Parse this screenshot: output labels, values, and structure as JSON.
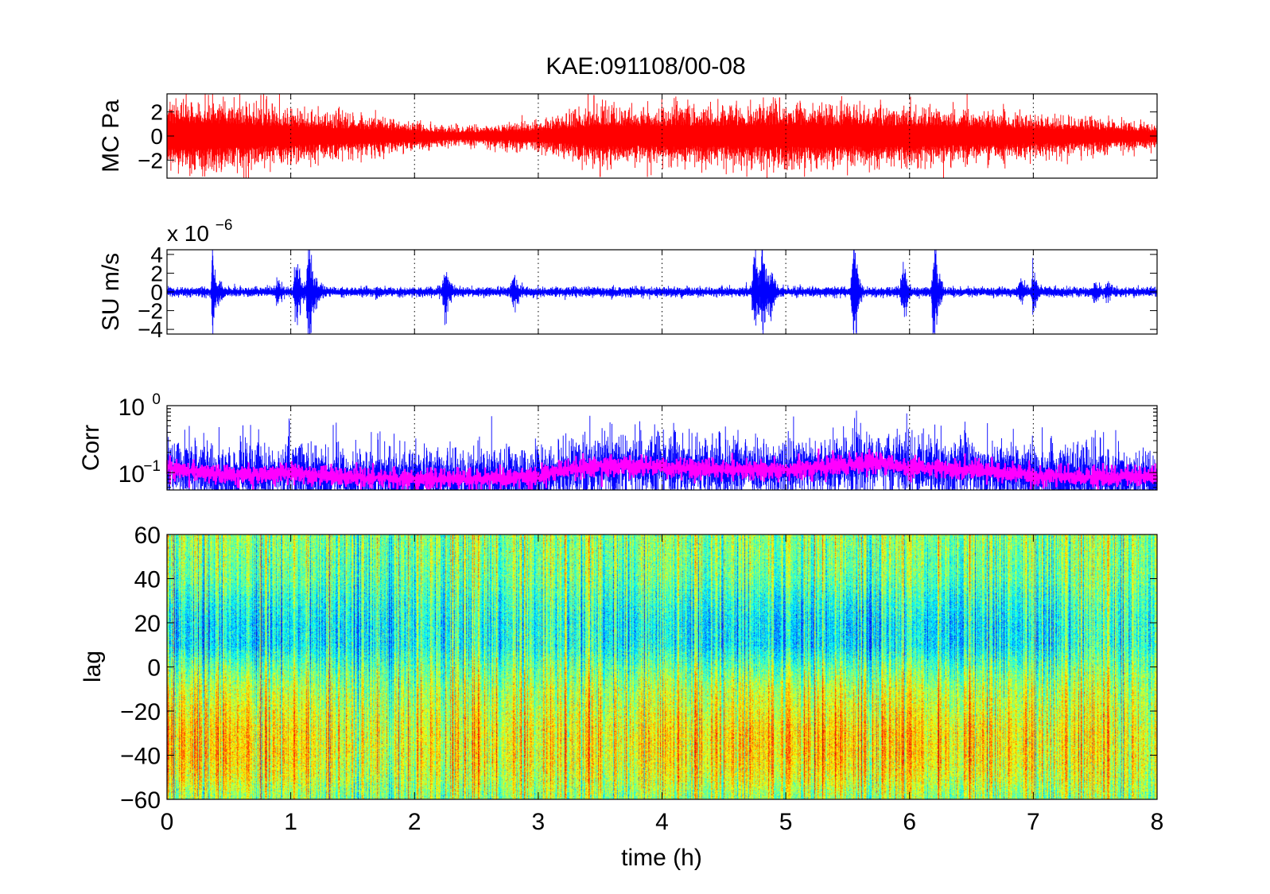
{
  "figure_title": "KAE:091108/00-08",
  "colors": {
    "pressure": "#ff0000",
    "velocity": "#0000ff",
    "corr": "#0000ff",
    "corr_smooth": "#ff00ff",
    "axes": "#000000",
    "grid": "#000000"
  },
  "chart_data": [
    {
      "type": "line",
      "title": "KAE:091108/00-08",
      "ylabel": "MC Pa",
      "xlim": [
        0,
        8
      ],
      "ylim": [
        -3.5,
        3.5
      ],
      "yticks": [
        -2,
        0,
        2
      ],
      "ytick_labels": [
        "−2",
        "0",
        "2"
      ],
      "xticks": [
        0,
        1,
        2,
        3,
        4,
        5,
        6,
        7,
        8
      ],
      "grid": "x-dotted",
      "series": [
        {
          "color": "#ff0000",
          "envelope": {
            "x": [
              0,
              0.3,
              0.6,
              0.8,
              1.0,
              1.3,
              1.6,
              1.9,
              2.1,
              2.4,
              2.7,
              3.0,
              3.3,
              3.5,
              3.8,
              4.0,
              4.5,
              5.0,
              5.5,
              6.0,
              6.5,
              7.0,
              7.5,
              8.0
            ],
            "amp": [
              1.8,
              1.9,
              1.7,
              1.5,
              1.4,
              1.2,
              1.0,
              0.8,
              0.6,
              0.5,
              0.6,
              0.8,
              1.2,
              1.6,
              1.4,
              1.5,
              1.5,
              1.6,
              1.5,
              1.5,
              1.3,
              1.1,
              0.9,
              0.6
            ]
          },
          "peaks": [
            {
              "x": 0.15,
              "y": 2.6
            },
            {
              "x": 0.4,
              "y": -3.0
            },
            {
              "x": 0.85,
              "y": 2.7
            },
            {
              "x": 1.0,
              "y": -2.4
            },
            {
              "x": 3.45,
              "y": 3.4
            },
            {
              "x": 3.5,
              "y": -3.4
            },
            {
              "x": 3.85,
              "y": 2.4
            },
            {
              "x": 4.6,
              "y": 2.6
            },
            {
              "x": 4.95,
              "y": 3.2
            },
            {
              "x": 5.05,
              "y": -2.8
            },
            {
              "x": 5.5,
              "y": 2.3
            },
            {
              "x": 6.45,
              "y": 2.1
            }
          ]
        }
      ]
    },
    {
      "type": "line",
      "ylabel": "SU m/s",
      "scale_label": "x 10",
      "scale_exponent": "−6",
      "xlim": [
        0,
        8
      ],
      "ylim": [
        -4.5,
        4.5
      ],
      "yticks": [
        -4,
        -2,
        0,
        2,
        4
      ],
      "ytick_labels": [
        "−4",
        "−2",
        "0",
        "2",
        "4"
      ],
      "xticks": [
        0,
        1,
        2,
        3,
        4,
        5,
        6,
        7,
        8
      ],
      "grid": "x-dotted",
      "series": [
        {
          "color": "#0000ff",
          "baseline_amp": 0.3,
          "events": [
            {
              "t": 0.37,
              "amp": 4.5,
              "w": 0.015
            },
            {
              "t": 0.42,
              "amp": 0.9,
              "w": 0.05
            },
            {
              "t": 0.9,
              "amp": 0.9,
              "w": 0.05
            },
            {
              "t": 1.05,
              "amp": 2.4,
              "w": 0.04
            },
            {
              "t": 1.15,
              "amp": 4.5,
              "w": 0.03
            },
            {
              "t": 1.2,
              "amp": 1.2,
              "w": 0.06
            },
            {
              "t": 1.7,
              "amp": 0.6,
              "w": 0.05
            },
            {
              "t": 2.25,
              "amp": 2.0,
              "w": 0.04
            },
            {
              "t": 2.8,
              "amp": 1.6,
              "w": 0.04
            },
            {
              "t": 3.6,
              "amp": 0.5,
              "w": 0.06
            },
            {
              "t": 4.75,
              "amp": 4.2,
              "w": 0.03
            },
            {
              "t": 4.82,
              "amp": 3.5,
              "w": 0.04
            },
            {
              "t": 4.88,
              "amp": 2.0,
              "w": 0.04
            },
            {
              "t": 5.55,
              "amp": 4.6,
              "w": 0.03
            },
            {
              "t": 5.95,
              "amp": 1.8,
              "w": 0.04
            },
            {
              "t": 6.2,
              "amp": 4.2,
              "w": 0.03
            },
            {
              "t": 6.9,
              "amp": 1.0,
              "w": 0.05
            },
            {
              "t": 7.0,
              "amp": 2.0,
              "w": 0.03
            },
            {
              "t": 7.5,
              "amp": 1.0,
              "w": 0.05
            },
            {
              "t": 7.6,
              "amp": 0.8,
              "w": 0.05
            }
          ]
        }
      ]
    },
    {
      "type": "line",
      "ylabel": "Corr",
      "yscale": "log",
      "xlim": [
        0,
        8
      ],
      "ylim": [
        0.055,
        1.0
      ],
      "yticks": [
        0.1,
        1.0
      ],
      "ytick_label_base": "10",
      "ytick_label_exponents": [
        "−1",
        "0"
      ],
      "xticks": [
        0,
        1,
        2,
        3,
        4,
        5,
        6,
        7,
        8
      ],
      "grid": "x-dotted",
      "series": [
        {
          "color": "#0000ff",
          "level": {
            "x": [
              0,
              0.3,
              0.6,
              1.0,
              1.5,
              2.0,
              2.5,
              3.0,
              3.2,
              3.6,
              4.0,
              4.5,
              5.0,
              5.5,
              5.7,
              6.0,
              6.5,
              7.0,
              7.5,
              8.0
            ],
            "y": [
              0.12,
              0.1,
              0.09,
              0.1,
              0.085,
              0.08,
              0.08,
              0.085,
              0.11,
              0.13,
              0.12,
              0.11,
              0.11,
              0.13,
              0.14,
              0.12,
              0.11,
              0.09,
              0.085,
              0.085
            ]
          },
          "spread": 0.7
        },
        {
          "color": "#ff00ff",
          "level": {
            "x": [
              0,
              0.3,
              0.6,
              1.0,
              1.5,
              2.0,
              2.5,
              3.0,
              3.2,
              3.6,
              4.0,
              4.5,
              5.0,
              5.5,
              5.7,
              6.0,
              6.5,
              7.0,
              7.5,
              8.0
            ],
            "y": [
              0.12,
              0.1,
              0.09,
              0.1,
              0.085,
              0.08,
              0.08,
              0.085,
              0.11,
              0.13,
              0.12,
              0.11,
              0.11,
              0.13,
              0.14,
              0.12,
              0.11,
              0.09,
              0.085,
              0.085
            ]
          },
          "spread": 0.22
        }
      ]
    },
    {
      "type": "heatmap",
      "ylabel": "lag",
      "xlabel": "time (h)",
      "xlim": [
        0,
        8
      ],
      "ylim": [
        -60,
        60
      ],
      "xticks": [
        0,
        1,
        2,
        3,
        4,
        5,
        6,
        7,
        8
      ],
      "xtick_labels": [
        "0",
        "1",
        "2",
        "3",
        "4",
        "5",
        "6",
        "7",
        "8"
      ],
      "yticks": [
        -60,
        -40,
        -20,
        0,
        20,
        40,
        60
      ],
      "ytick_labels": [
        "−60",
        "−40",
        "−20",
        "0",
        "20",
        "40",
        "60"
      ],
      "colormap": "jet",
      "color_range": [
        -1,
        1
      ],
      "pattern": "positive lags (0 to 40) lower values (cyan/blue); negative lags (-10 to -50) higher values (yellow); strongest blue near t=0.1-0.8 and t=4-6, lag 0-20",
      "structure": {
        "lag_profile": {
          "lag": [
            -60,
            -50,
            -40,
            -30,
            -20,
            -10,
            0,
            10,
            20,
            30,
            40,
            50,
            60
          ],
          "value": [
            0.05,
            0.25,
            0.35,
            0.35,
            0.25,
            0.15,
            -0.05,
            -0.3,
            -0.3,
            -0.2,
            -0.05,
            0.0,
            0.05
          ]
        },
        "time_strength": {
          "t": [
            0,
            0.5,
            1.0,
            1.5,
            2.0,
            2.5,
            3.0,
            3.5,
            4.0,
            4.5,
            5.0,
            5.5,
            6.0,
            6.5,
            7.0,
            7.5,
            8.0
          ],
          "s": [
            1.0,
            1.0,
            0.9,
            0.7,
            0.6,
            0.7,
            0.6,
            0.7,
            0.8,
            0.9,
            1.0,
            1.0,
            0.9,
            0.9,
            0.8,
            0.6,
            0.5
          ]
        }
      }
    }
  ]
}
